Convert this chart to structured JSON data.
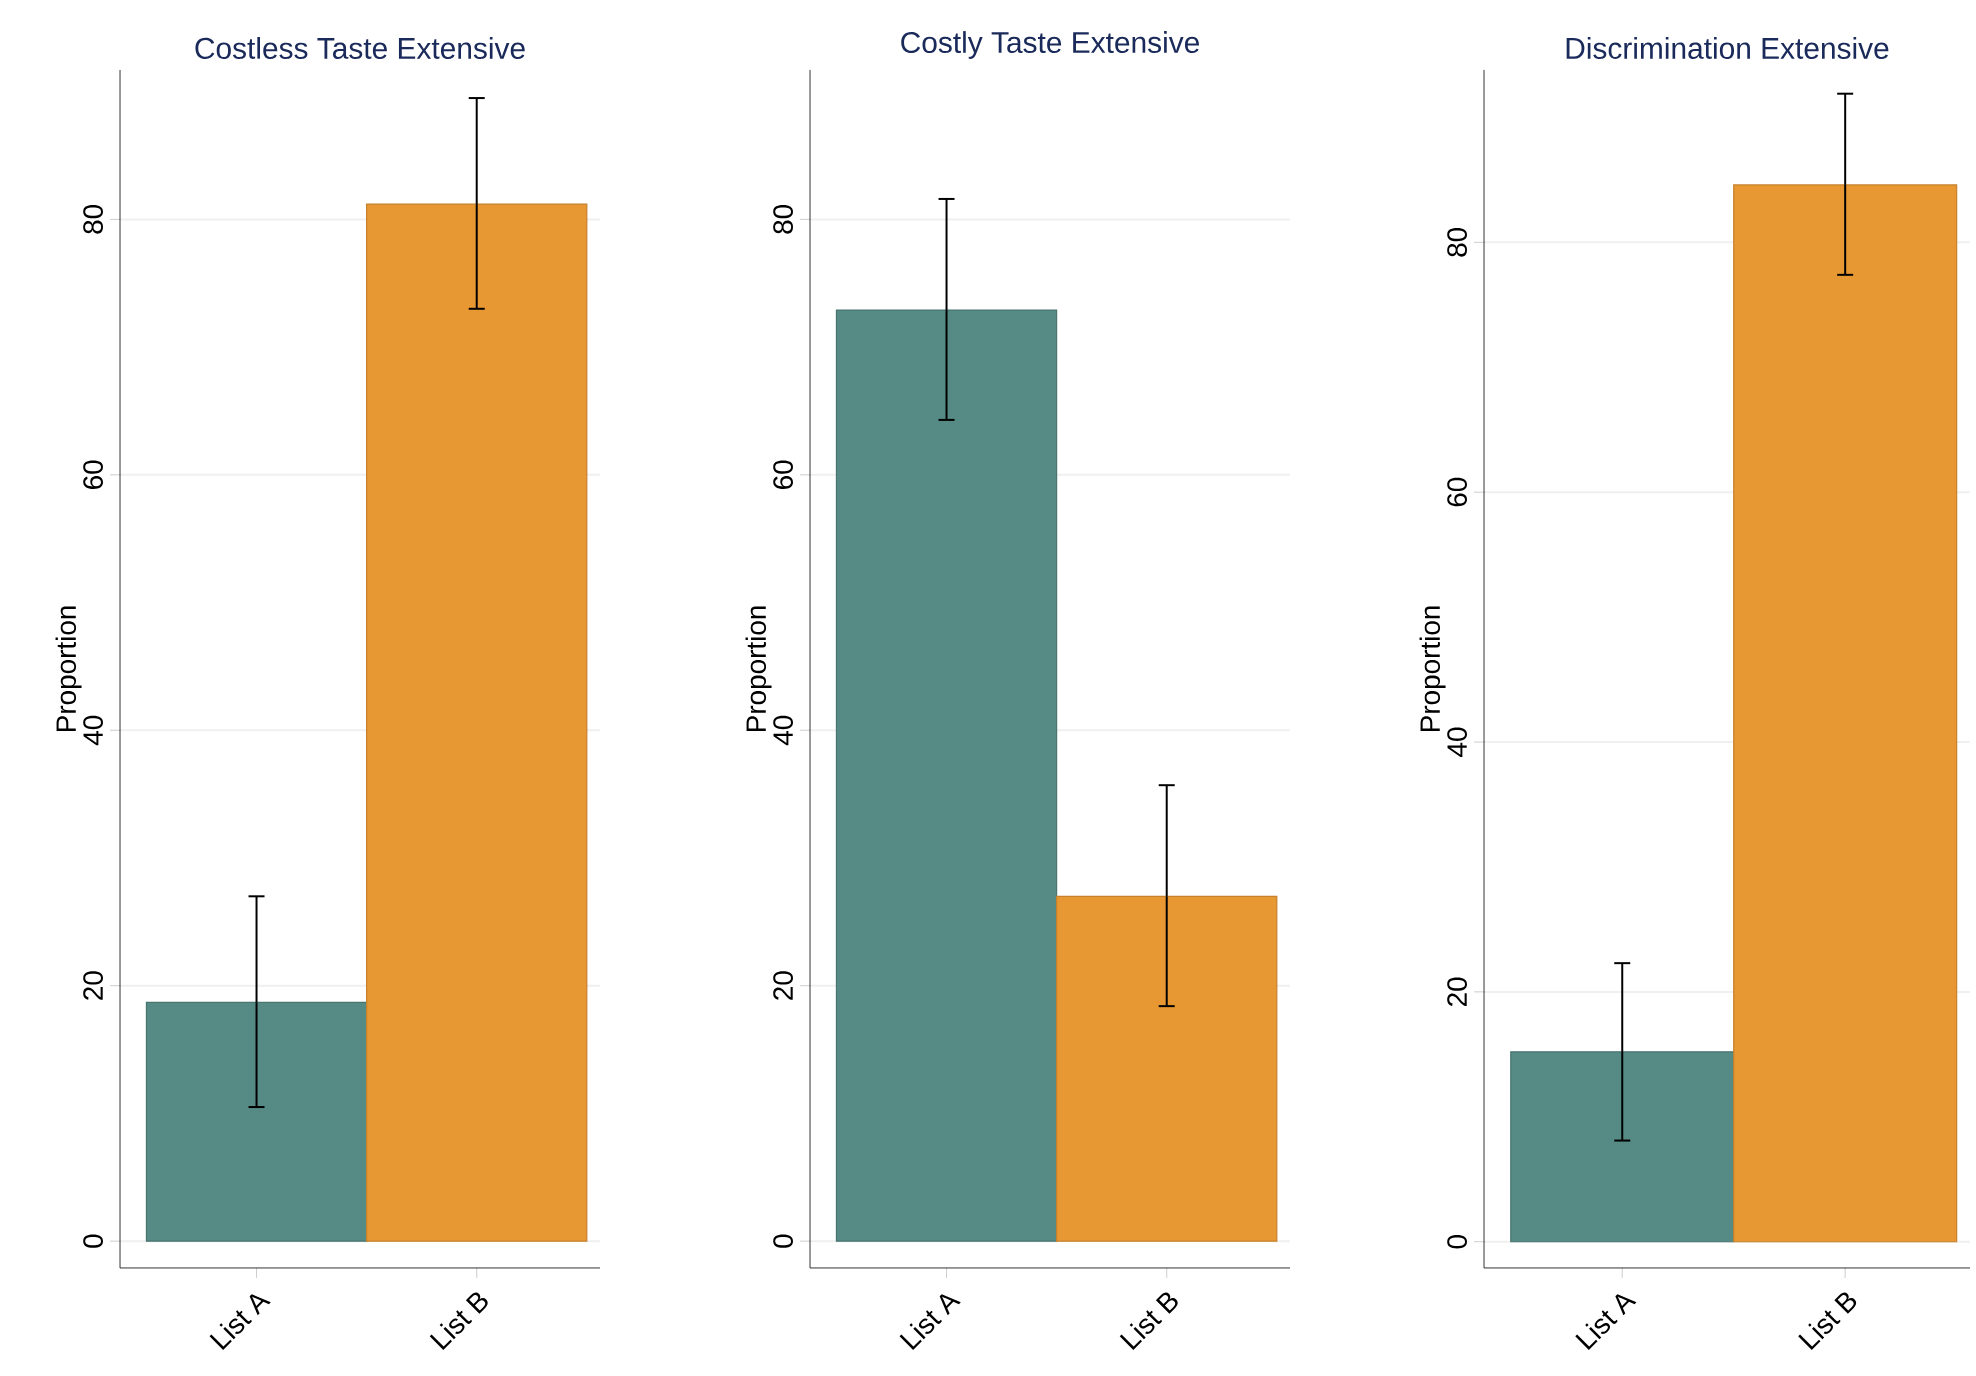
{
  "chart_data": [
    {
      "type": "bar",
      "title": "Costless Taste Extensive",
      "ylabel": "Proportion",
      "categories": [
        "List A",
        "List B"
      ],
      "values": [
        18.7,
        81.2
      ],
      "colors": [
        "#568a84",
        "#e89833"
      ],
      "errors": [
        [
          10.5,
          27.0
        ],
        [
          73.0,
          89.5
        ]
      ],
      "ylim": [
        -2.1,
        91.7
      ],
      "yticks": [
        0,
        20,
        40,
        60,
        80
      ],
      "grid": "y"
    },
    {
      "type": "bar",
      "title": "Costly Taste Extensive",
      "ylabel": "Proportion",
      "categories": [
        "List A",
        "List B"
      ],
      "values": [
        72.9,
        27.0
      ],
      "colors": [
        "#568a84",
        "#e89833"
      ],
      "errors": [
        [
          64.3,
          81.6
        ],
        [
          18.4,
          35.7
        ]
      ],
      "ylim": [
        -2.1,
        91.7
      ],
      "yticks": [
        0,
        20,
        40,
        60,
        80
      ],
      "grid": "y"
    },
    {
      "type": "bar",
      "title": "Discrimination Extensive",
      "ylabel": "Proportion",
      "categories": [
        "List A",
        "List B"
      ],
      "values": [
        15.2,
        84.6
      ],
      "colors": [
        "#568a84",
        "#e89833"
      ],
      "errors": [
        [
          8.1,
          22.3
        ],
        [
          77.4,
          91.9
        ]
      ],
      "ylim": [
        -2.1,
        93.8
      ],
      "yticks": [
        0,
        20,
        40,
        60,
        80
      ],
      "grid": "y"
    }
  ]
}
